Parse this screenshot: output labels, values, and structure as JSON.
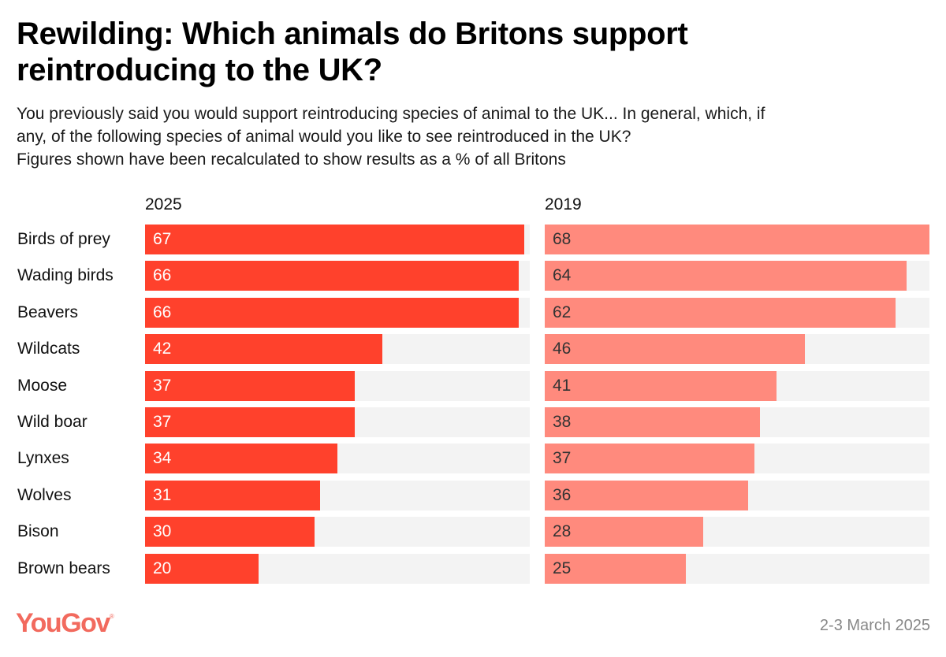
{
  "header": {
    "title_line1": "Rewilding: Which animals do Britons support",
    "title_line2": "reintroducing to the UK?",
    "subtitle_lines": [
      "You previously said you would support reintroducing species of animal to the UK... In general, which, if",
      "any, of the following species of animal would you like to see reintroduced in the UK?",
      "Figures shown have been recalculated to show results as a % of all Britons"
    ]
  },
  "footer": {
    "logo": "YouGov",
    "logo_mark": "®",
    "date": "2-3 March 2025"
  },
  "colors": {
    "bar_2025": "#ff412c",
    "bar_2019": "#ff8a7d",
    "track": "#f3f3f3",
    "logo": "#f26a5e"
  },
  "chart_data": {
    "type": "bar",
    "orientation": "horizontal",
    "title": "Rewilding: Which animals do Britons support reintroducing to the UK?",
    "xlabel": "",
    "ylabel": "",
    "unit": "% of all Britons",
    "categories": [
      "Birds of prey",
      "Wading birds",
      "Beavers",
      "Wildcats",
      "Moose",
      "Wild boar",
      "Lynxes",
      "Wolves",
      "Bison",
      "Brown bears"
    ],
    "series": [
      {
        "name": "2025",
        "values": [
          67,
          66,
          66,
          42,
          37,
          37,
          34,
          31,
          30,
          20
        ]
      },
      {
        "name": "2019",
        "values": [
          68,
          64,
          62,
          46,
          41,
          38,
          37,
          36,
          28,
          25
        ]
      }
    ],
    "xlim": [
      0,
      68
    ],
    "grid": false,
    "legend": "panel headers"
  }
}
